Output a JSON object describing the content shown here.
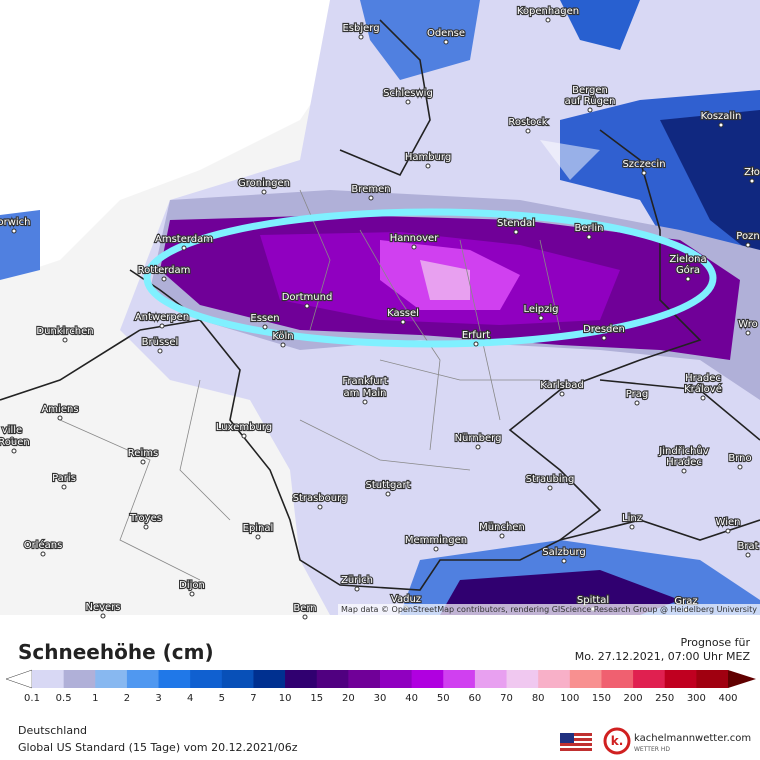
{
  "map": {
    "labels": [
      "Kopenhagen",
      "Esbjerg",
      "Odense",
      "Schleswig",
      "Bergen",
      "auf Rügen",
      "Koszalin",
      "Rostock",
      "Hamburg",
      "Szczecin",
      "Zło",
      "Groningen",
      "Bremen",
      "orwich",
      "Amsterdam",
      "Stendal",
      "Hannover",
      "Berlin",
      "Pozn",
      "Zielona",
      "Góra",
      "Rotterdam",
      "Dortmund",
      "Essen",
      "Antwerpen",
      "Kassel",
      "Leipzig",
      "Erfurt",
      "Dresden",
      "Wro",
      "Dunkirchen",
      "Brüssel",
      "Köln",
      "Frankfurt",
      "am Main",
      "Karlsbad",
      "Hradec",
      "Králové",
      "Prag",
      "Amiens",
      "Luxemburg",
      "ville",
      "Rouen",
      "Nürnberg",
      "Jindřichův",
      "Hradec",
      "Brno",
      "Reims",
      "Paris",
      "Stuttgart",
      "Straubing",
      "Strasbourg",
      "Troyes",
      "Epinal",
      "Linz",
      "Wien",
      "München",
      "Memmingen",
      "Orléans",
      "Salzburg",
      "Brat",
      "Zürich",
      "Vaduz",
      "Dijon",
      "Spittal",
      "Nevers",
      "Bern",
      "Graz"
    ],
    "attribution": "Map data © OpenStreetMap contributors, rendering GIScience Research Group @ Heidelberg University"
  },
  "legend": {
    "title": "Schneehöhe (cm)",
    "labels": [
      "0.1",
      "0.5",
      "1",
      "2",
      "3",
      "4",
      "5",
      "7",
      "10",
      "15",
      "20",
      "30",
      "40",
      "50",
      "60",
      "70",
      "80",
      "100",
      "150",
      "200",
      "250",
      "300",
      "400"
    ],
    "colors": [
      "#d8d8f4",
      "#b0b0d8",
      "#88b8f0",
      "#5098f0",
      "#2078e8",
      "#1060d0",
      "#0850b8",
      "#003090",
      "#300070",
      "#500080",
      "#700098",
      "#9000c0",
      "#b000e0",
      "#d040f0",
      "#e8a0f0",
      "#f0c8f0",
      "#f8b0c8",
      "#f89090",
      "#f06070",
      "#e02050",
      "#c00020",
      "#a00010",
      "#600000"
    ]
  },
  "forecast": {
    "heading": "Prognose für",
    "time": "Mo. 27.12.2021, 07:00 Uhr MEZ"
  },
  "footer": {
    "region": "Deutschland",
    "model": "Global US Standard (15 Tage) vom 20.12.2021/06z",
    "brand": "kachelmannwetter.com",
    "brand_sub": "WETTER HD"
  }
}
